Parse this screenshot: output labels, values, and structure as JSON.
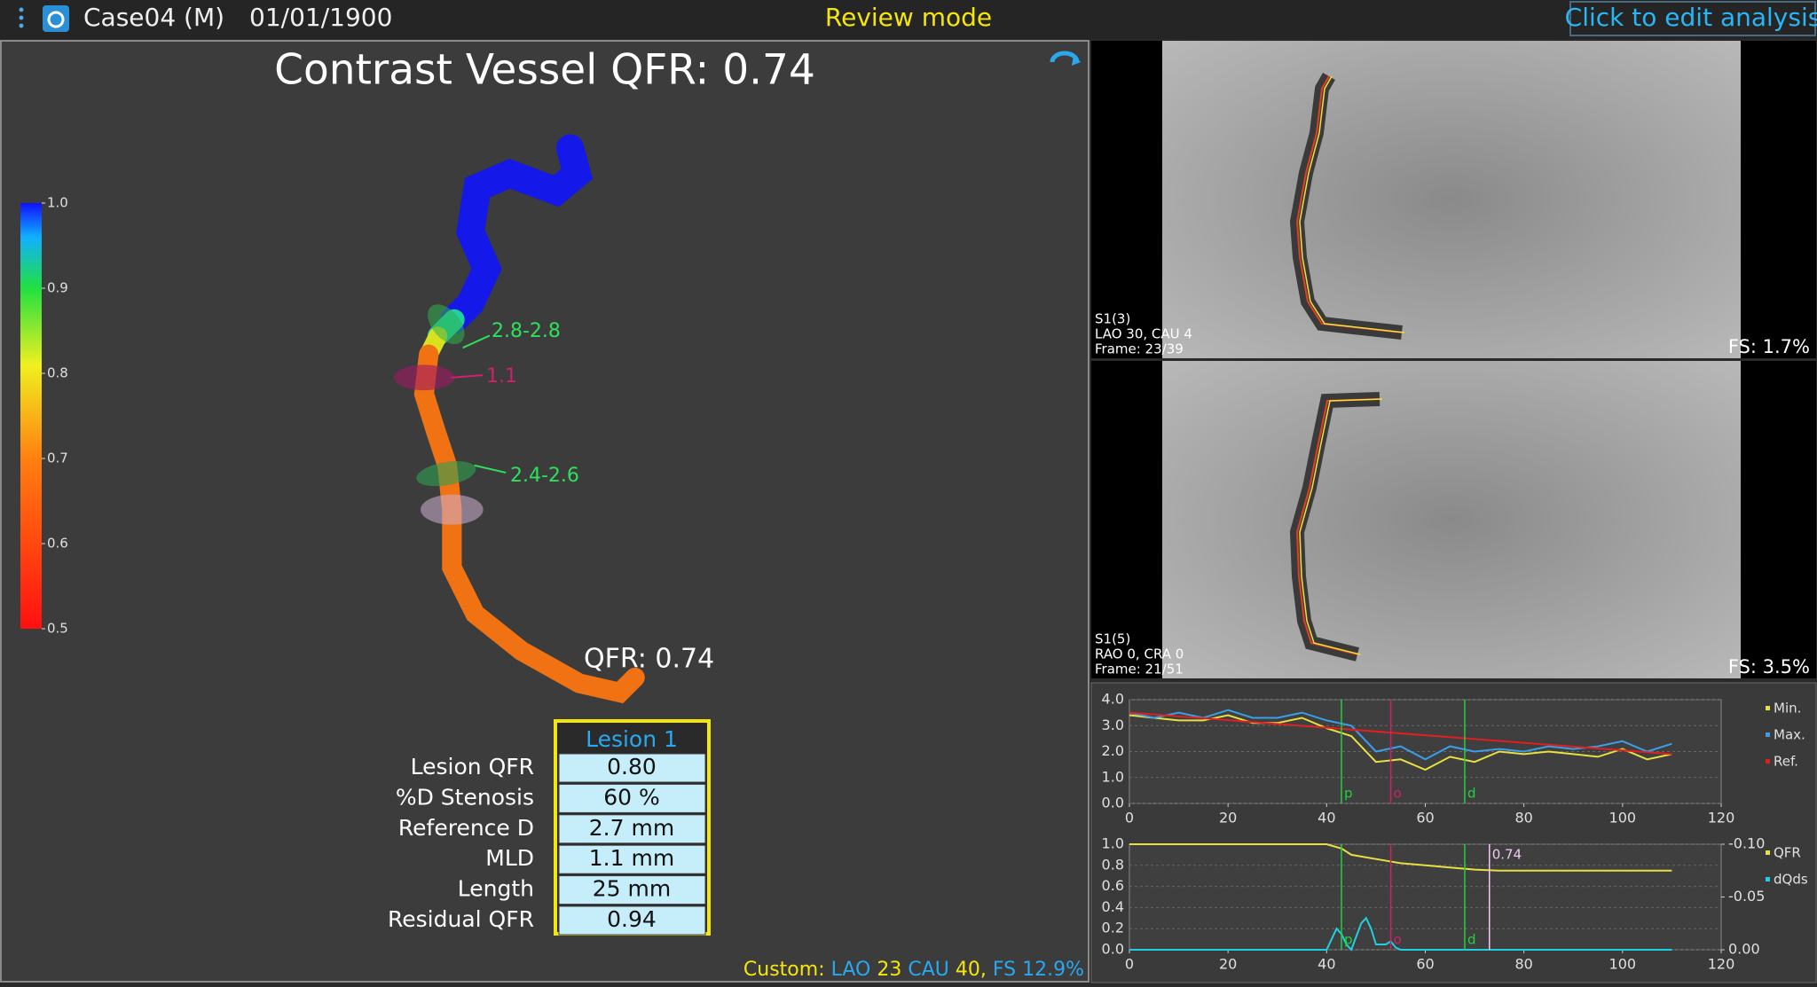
{
  "top_bar": {
    "case_name": "Case04 (M)",
    "date": "01/01/1900",
    "mode": "Review mode",
    "edit_button": "Click to edit analysis"
  },
  "left_panel": {
    "title": "Contrast Vessel QFR: 0.74",
    "colorbar": {
      "lim": [
        0.5,
        1.0
      ],
      "ticks": [
        {
          "value": 1.0,
          "label": "1.0"
        },
        0.9,
        0.8,
        0.7,
        0.6,
        0.5
      ]
    },
    "vessel_labels": [
      {
        "text": "2.8-2.8",
        "color": "#2ee05a"
      },
      {
        "text": "1.1",
        "color": "#d0206a"
      },
      {
        "text": "2.4-2.6",
        "color": "#2ee05a"
      }
    ],
    "qfr_label": "QFR: 0.74",
    "lesion_table": {
      "header": "Lesion 1",
      "rows": [
        [
          "Lesion QFR",
          "0.80"
        ],
        [
          "%D Stenosis",
          "60 %"
        ],
        [
          "Reference D",
          "2.7 mm"
        ],
        [
          "MLD",
          "1.1 mm"
        ],
        [
          "Length",
          "25 mm"
        ],
        [
          "Residual QFR",
          "0.94"
        ]
      ]
    },
    "view_info": [
      {
        "text": "Custom:",
        "color": "#f5e60a"
      },
      {
        "text": "LAO",
        "color": "#29a8f0"
      },
      {
        "text": "23",
        "color": "#f5e60a"
      },
      {
        "text": "CAU",
        "color": "#29a8f0"
      },
      {
        "text": "40,",
        "color": "#f5e60a"
      },
      {
        "text": "FS",
        "color": "#29a8f0"
      },
      {
        "text": "12.9%",
        "color": "#29a8f0"
      }
    ]
  },
  "views": [
    {
      "name": "S1(3)",
      "projection": "LAO 30, CAU 4",
      "frame": "Frame: 23/39",
      "fs": "FS: 1.7%"
    },
    {
      "name": "S1(5)",
      "projection": "RAO 0, CRA 0",
      "frame": "Frame: 21/51",
      "fs": "FS: 3.5%"
    }
  ],
  "chart_data": [
    {
      "type": "line",
      "xlim": [
        0,
        120
      ],
      "xticks": [
        0,
        20,
        40,
        60,
        80,
        100,
        120
      ],
      "ylim": [
        0,
        4
      ],
      "yticks": [
        {
          "value": 0,
          "label": "0.0"
        },
        {
          "value": 1,
          "label": "1.0"
        },
        {
          "value": 2,
          "label": "2.0"
        },
        {
          "value": 3,
          "label": "3.0"
        },
        {
          "value": 4,
          "label": "4.0"
        }
      ],
      "grid": true,
      "series": [
        {
          "name": "Min.",
          "color": "#e8e040",
          "x": [
            0,
            5,
            10,
            15,
            20,
            25,
            30,
            35,
            40,
            45,
            50,
            55,
            60,
            65,
            70,
            75,
            80,
            85,
            90,
            95,
            100,
            105,
            110
          ],
          "values": [
            3.4,
            3.3,
            3.2,
            3.2,
            3.4,
            3.1,
            3.1,
            3.3,
            2.9,
            2.6,
            1.6,
            1.7,
            1.3,
            1.8,
            1.6,
            2.0,
            1.9,
            2.0,
            1.9,
            1.8,
            2.1,
            1.7,
            1.9
          ]
        },
        {
          "name": "Max.",
          "color": "#3a9ee8",
          "x": [
            0,
            5,
            10,
            15,
            20,
            25,
            30,
            35,
            40,
            45,
            50,
            55,
            60,
            65,
            70,
            75,
            80,
            85,
            90,
            95,
            100,
            105,
            110
          ],
          "values": [
            3.5,
            3.3,
            3.5,
            3.3,
            3.6,
            3.3,
            3.3,
            3.5,
            3.2,
            3.0,
            2.0,
            2.2,
            1.7,
            2.2,
            2.0,
            2.1,
            2.0,
            2.2,
            2.1,
            2.2,
            2.4,
            2.0,
            2.3
          ]
        },
        {
          "name": "Ref.",
          "color": "#e02020",
          "x": [
            0,
            110
          ],
          "values": [
            3.5,
            1.9
          ]
        }
      ],
      "markers": [
        {
          "x": 43,
          "label": "p",
          "color": "#22d040"
        },
        {
          "x": 53,
          "label": "o",
          "color": "#d0206a"
        },
        {
          "x": 68,
          "label": "d",
          "color": "#22d040"
        }
      ]
    },
    {
      "type": "line",
      "xlim": [
        0,
        120
      ],
      "xticks": [
        0,
        20,
        40,
        60,
        80,
        100,
        120
      ],
      "ylim": [
        0,
        1
      ],
      "yticks": [
        {
          "value": 0,
          "label": "0.0"
        },
        0.2,
        0.4,
        0.6,
        0.8,
        {
          "value": 1,
          "label": "1.0"
        }
      ],
      "y2lim": [
        0,
        -0.1
      ],
      "y2ticks": [
        {
          "value": -0.1,
          "label": "-0.10"
        },
        -0.05,
        {
          "value": 0,
          "label": "0.00"
        }
      ],
      "grid": true,
      "series": [
        {
          "name": "QFR",
          "color": "#e8e040",
          "x": [
            0,
            40,
            43,
            45,
            50,
            55,
            60,
            65,
            70,
            75,
            110
          ],
          "values": [
            1.0,
            1.0,
            0.96,
            0.9,
            0.86,
            0.82,
            0.8,
            0.78,
            0.76,
            0.75,
            0.75
          ]
        },
        {
          "name": "dQds",
          "color": "#20d0e0",
          "axis": "y2",
          "x": [
            0,
            40,
            42,
            43,
            44,
            45,
            47,
            48,
            49,
            50,
            52,
            53,
            54,
            55,
            60,
            110
          ],
          "values": [
            0,
            0,
            -0.02,
            -0.015,
            -0.005,
            0,
            -0.025,
            -0.03,
            -0.02,
            -0.005,
            -0.005,
            -0.008,
            -0.002,
            0,
            0,
            0
          ]
        }
      ],
      "markers": [
        {
          "x": 43,
          "label": "p",
          "color": "#22d040"
        },
        {
          "x": 53,
          "label": "o",
          "color": "#d0206a"
        },
        {
          "x": 68,
          "label": "d",
          "color": "#22d040"
        },
        {
          "x": 73,
          "label": "0.74",
          "color": "#f0c8f0"
        }
      ]
    }
  ]
}
